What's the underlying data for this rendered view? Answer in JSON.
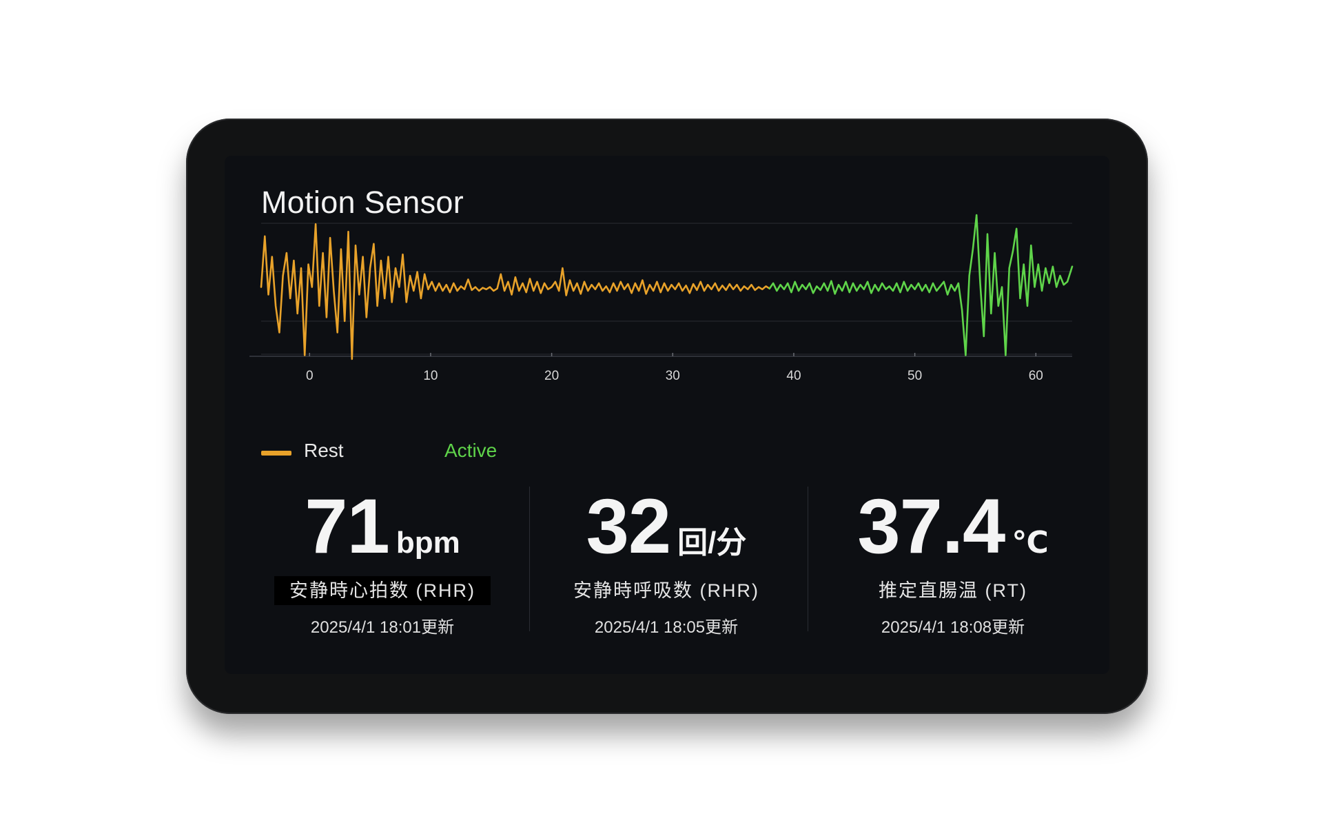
{
  "screen": {
    "title": "Motion Sensor"
  },
  "colors": {
    "rest": "#e8a22a",
    "active": "#5fd44a",
    "grid": "#2a2d33",
    "axis_text": "#d8d8d8"
  },
  "legend": {
    "rest_label": "Rest",
    "active_label": "Active"
  },
  "chart_data": {
    "type": "line",
    "xlim": [
      -4,
      63
    ],
    "ylim": [
      -1,
      1
    ],
    "x_ticks": [
      0,
      10,
      20,
      30,
      40,
      50,
      60
    ],
    "grid": true,
    "legend_placement": "bottom-left",
    "series": [
      {
        "name": "Rest",
        "x_start": -4,
        "x_end": 38,
        "points": [
          [
            -4,
            0.05
          ],
          [
            -3.7,
            0.72
          ],
          [
            -3.4,
            -0.05
          ],
          [
            -3.1,
            0.45
          ],
          [
            -2.8,
            -0.2
          ],
          [
            -2.5,
            -0.55
          ],
          [
            -2.2,
            0.2
          ],
          [
            -1.9,
            0.5
          ],
          [
            -1.6,
            -0.1
          ],
          [
            -1.3,
            0.4
          ],
          [
            -1.0,
            -0.3
          ],
          [
            -0.7,
            0.3
          ],
          [
            -0.4,
            -0.85
          ],
          [
            -0.1,
            0.35
          ],
          [
            0.2,
            0.05
          ],
          [
            0.5,
            0.88
          ],
          [
            0.8,
            -0.2
          ],
          [
            1.1,
            0.5
          ],
          [
            1.4,
            -0.35
          ],
          [
            1.7,
            0.7
          ],
          [
            2.0,
            0.0
          ],
          [
            2.3,
            -0.55
          ],
          [
            2.6,
            0.55
          ],
          [
            2.9,
            -0.4
          ],
          [
            3.2,
            0.78
          ],
          [
            3.5,
            -0.9
          ],
          [
            3.8,
            0.6
          ],
          [
            4.1,
            -0.05
          ],
          [
            4.4,
            0.45
          ],
          [
            4.7,
            -0.35
          ],
          [
            5.0,
            0.3
          ],
          [
            5.3,
            0.62
          ],
          [
            5.6,
            -0.2
          ],
          [
            5.9,
            0.4
          ],
          [
            6.2,
            -0.1
          ],
          [
            6.5,
            0.45
          ],
          [
            6.8,
            -0.15
          ],
          [
            7.1,
            0.3
          ],
          [
            7.4,
            0.05
          ],
          [
            7.7,
            0.48
          ],
          [
            8.0,
            -0.15
          ],
          [
            8.3,
            0.2
          ],
          [
            8.6,
            0.0
          ],
          [
            8.9,
            0.25
          ],
          [
            9.2,
            -0.1
          ],
          [
            9.5,
            0.22
          ],
          [
            9.8,
            0.02
          ],
          [
            10.1,
            0.12
          ],
          [
            10.4,
            0.0
          ],
          [
            10.7,
            0.1
          ],
          [
            11.0,
            0.0
          ],
          [
            11.3,
            0.08
          ],
          [
            11.6,
            -0.02
          ],
          [
            11.9,
            0.1
          ],
          [
            12.2,
            0.0
          ],
          [
            12.5,
            0.06
          ],
          [
            12.8,
            0.02
          ],
          [
            13.1,
            0.15
          ],
          [
            13.4,
            0.01
          ],
          [
            13.7,
            0.05
          ],
          [
            14.0,
            0.0
          ],
          [
            14.3,
            0.04
          ],
          [
            14.6,
            0.02
          ],
          [
            14.9,
            0.05
          ],
          [
            15.2,
            0.0
          ],
          [
            15.5,
            0.03
          ],
          [
            15.8,
            0.22
          ],
          [
            16.1,
            0.0
          ],
          [
            16.4,
            0.12
          ],
          [
            16.7,
            -0.05
          ],
          [
            17.0,
            0.18
          ],
          [
            17.3,
            0.0
          ],
          [
            17.6,
            0.1
          ],
          [
            17.9,
            -0.02
          ],
          [
            18.2,
            0.16
          ],
          [
            18.5,
            0.0
          ],
          [
            18.8,
            0.12
          ],
          [
            19.1,
            -0.03
          ],
          [
            19.4,
            0.1
          ],
          [
            19.7,
            0.02
          ],
          [
            20.0,
            0.05
          ],
          [
            20.3,
            0.12
          ],
          [
            20.6,
            0.0
          ],
          [
            20.9,
            0.3
          ],
          [
            21.2,
            -0.06
          ],
          [
            21.5,
            0.14
          ],
          [
            21.8,
            0.0
          ],
          [
            22.1,
            0.1
          ],
          [
            22.4,
            -0.04
          ],
          [
            22.7,
            0.12
          ],
          [
            23.0,
            0.0
          ],
          [
            23.3,
            0.08
          ],
          [
            23.6,
            0.02
          ],
          [
            23.9,
            0.1
          ],
          [
            24.2,
            0.0
          ],
          [
            24.5,
            0.06
          ],
          [
            24.8,
            -0.02
          ],
          [
            25.1,
            0.1
          ],
          [
            25.4,
            0.0
          ],
          [
            25.7,
            0.12
          ],
          [
            26.0,
            0.02
          ],
          [
            26.3,
            0.09
          ],
          [
            26.6,
            -0.03
          ],
          [
            26.9,
            0.1
          ],
          [
            27.2,
            0.0
          ],
          [
            27.5,
            0.14
          ],
          [
            27.8,
            -0.04
          ],
          [
            28.1,
            0.08
          ],
          [
            28.4,
            0.0
          ],
          [
            28.7,
            0.12
          ],
          [
            29.0,
            -0.02
          ],
          [
            29.3,
            0.1
          ],
          [
            29.6,
            0.0
          ],
          [
            29.9,
            0.08
          ],
          [
            30.2,
            0.02
          ],
          [
            30.5,
            0.1
          ],
          [
            30.8,
            0.0
          ],
          [
            31.1,
            0.07
          ],
          [
            31.4,
            -0.03
          ],
          [
            31.7,
            0.09
          ],
          [
            32.0,
            0.01
          ],
          [
            32.3,
            0.12
          ],
          [
            32.6,
            0.0
          ],
          [
            32.9,
            0.08
          ],
          [
            33.2,
            0.02
          ],
          [
            33.5,
            0.1
          ],
          [
            33.8,
            0.0
          ],
          [
            34.1,
            0.07
          ],
          [
            34.4,
            0.01
          ],
          [
            34.7,
            0.09
          ],
          [
            35.0,
            0.02
          ],
          [
            35.3,
            0.08
          ],
          [
            35.6,
            0.0
          ],
          [
            35.9,
            0.06
          ],
          [
            36.2,
            0.02
          ],
          [
            36.5,
            0.08
          ],
          [
            36.8,
            0.01
          ],
          [
            37.1,
            0.05
          ],
          [
            37.4,
            0.02
          ],
          [
            37.7,
            0.06
          ],
          [
            38.0,
            0.03
          ]
        ]
      },
      {
        "name": "Active",
        "x_start": 38,
        "x_end": 63,
        "points": [
          [
            38.0,
            0.03
          ],
          [
            38.3,
            0.1
          ],
          [
            38.6,
            0.0
          ],
          [
            38.9,
            0.08
          ],
          [
            39.2,
            0.02
          ],
          [
            39.5,
            0.1
          ],
          [
            39.8,
            -0.02
          ],
          [
            40.1,
            0.12
          ],
          [
            40.4,
            0.0
          ],
          [
            40.7,
            0.08
          ],
          [
            41.0,
            0.02
          ],
          [
            41.3,
            0.1
          ],
          [
            41.6,
            -0.03
          ],
          [
            41.9,
            0.06
          ],
          [
            42.2,
            0.01
          ],
          [
            42.5,
            0.1
          ],
          [
            42.8,
            0.0
          ],
          [
            43.1,
            0.13
          ],
          [
            43.4,
            -0.04
          ],
          [
            43.7,
            0.08
          ],
          [
            44.0,
            0.0
          ],
          [
            44.3,
            0.12
          ],
          [
            44.6,
            -0.02
          ],
          [
            44.9,
            0.1
          ],
          [
            45.2,
            0.0
          ],
          [
            45.5,
            0.08
          ],
          [
            45.8,
            0.02
          ],
          [
            46.1,
            0.12
          ],
          [
            46.4,
            -0.03
          ],
          [
            46.7,
            0.08
          ],
          [
            47.0,
            0.0
          ],
          [
            47.3,
            0.1
          ],
          [
            47.6,
            0.02
          ],
          [
            47.9,
            0.06
          ],
          [
            48.2,
            0.0
          ],
          [
            48.5,
            0.1
          ],
          [
            48.8,
            -0.02
          ],
          [
            49.1,
            0.12
          ],
          [
            49.4,
            0.0
          ],
          [
            49.7,
            0.08
          ],
          [
            50.0,
            0.02
          ],
          [
            50.3,
            0.1
          ],
          [
            50.6,
            0.0
          ],
          [
            50.9,
            0.08
          ],
          [
            51.2,
            -0.02
          ],
          [
            51.5,
            0.1
          ],
          [
            51.8,
            0.0
          ],
          [
            52.1,
            0.06
          ],
          [
            52.4,
            0.12
          ],
          [
            52.7,
            -0.05
          ],
          [
            53.0,
            0.08
          ],
          [
            53.3,
            0.0
          ],
          [
            53.6,
            0.1
          ],
          [
            53.9,
            -0.25
          ],
          [
            54.2,
            -0.85
          ],
          [
            54.5,
            0.2
          ],
          [
            54.8,
            0.55
          ],
          [
            55.1,
            1.0
          ],
          [
            55.4,
            0.1
          ],
          [
            55.7,
            -0.6
          ],
          [
            56.0,
            0.75
          ],
          [
            56.3,
            -0.3
          ],
          [
            56.6,
            0.5
          ],
          [
            56.9,
            -0.2
          ],
          [
            57.2,
            0.05
          ],
          [
            57.5,
            -0.85
          ],
          [
            57.8,
            0.3
          ],
          [
            58.1,
            0.52
          ],
          [
            58.4,
            0.82
          ],
          [
            58.7,
            -0.1
          ],
          [
            59.0,
            0.35
          ],
          [
            59.3,
            -0.2
          ],
          [
            59.6,
            0.6
          ],
          [
            59.9,
            0.05
          ],
          [
            60.2,
            0.35
          ],
          [
            60.5,
            0.0
          ],
          [
            60.8,
            0.3
          ],
          [
            61.1,
            0.1
          ],
          [
            61.4,
            0.32
          ],
          [
            61.7,
            0.05
          ],
          [
            62.0,
            0.2
          ],
          [
            62.3,
            0.08
          ],
          [
            62.6,
            0.12
          ],
          [
            63.0,
            0.32
          ]
        ]
      }
    ]
  },
  "metrics": [
    {
      "value": "71",
      "unit": "bpm",
      "label": "安静時心拍数 (RHR)",
      "updated": "2025/4/1 18:01更新"
    },
    {
      "value": "32",
      "unit": "回/分",
      "label": "安静時呼吸数 (RHR)",
      "updated": "2025/4/1 18:05更新"
    },
    {
      "value": "37.4",
      "unit": "℃",
      "label": "推定直腸温 (RT)",
      "updated": "2025/4/1 18:08更新"
    }
  ]
}
